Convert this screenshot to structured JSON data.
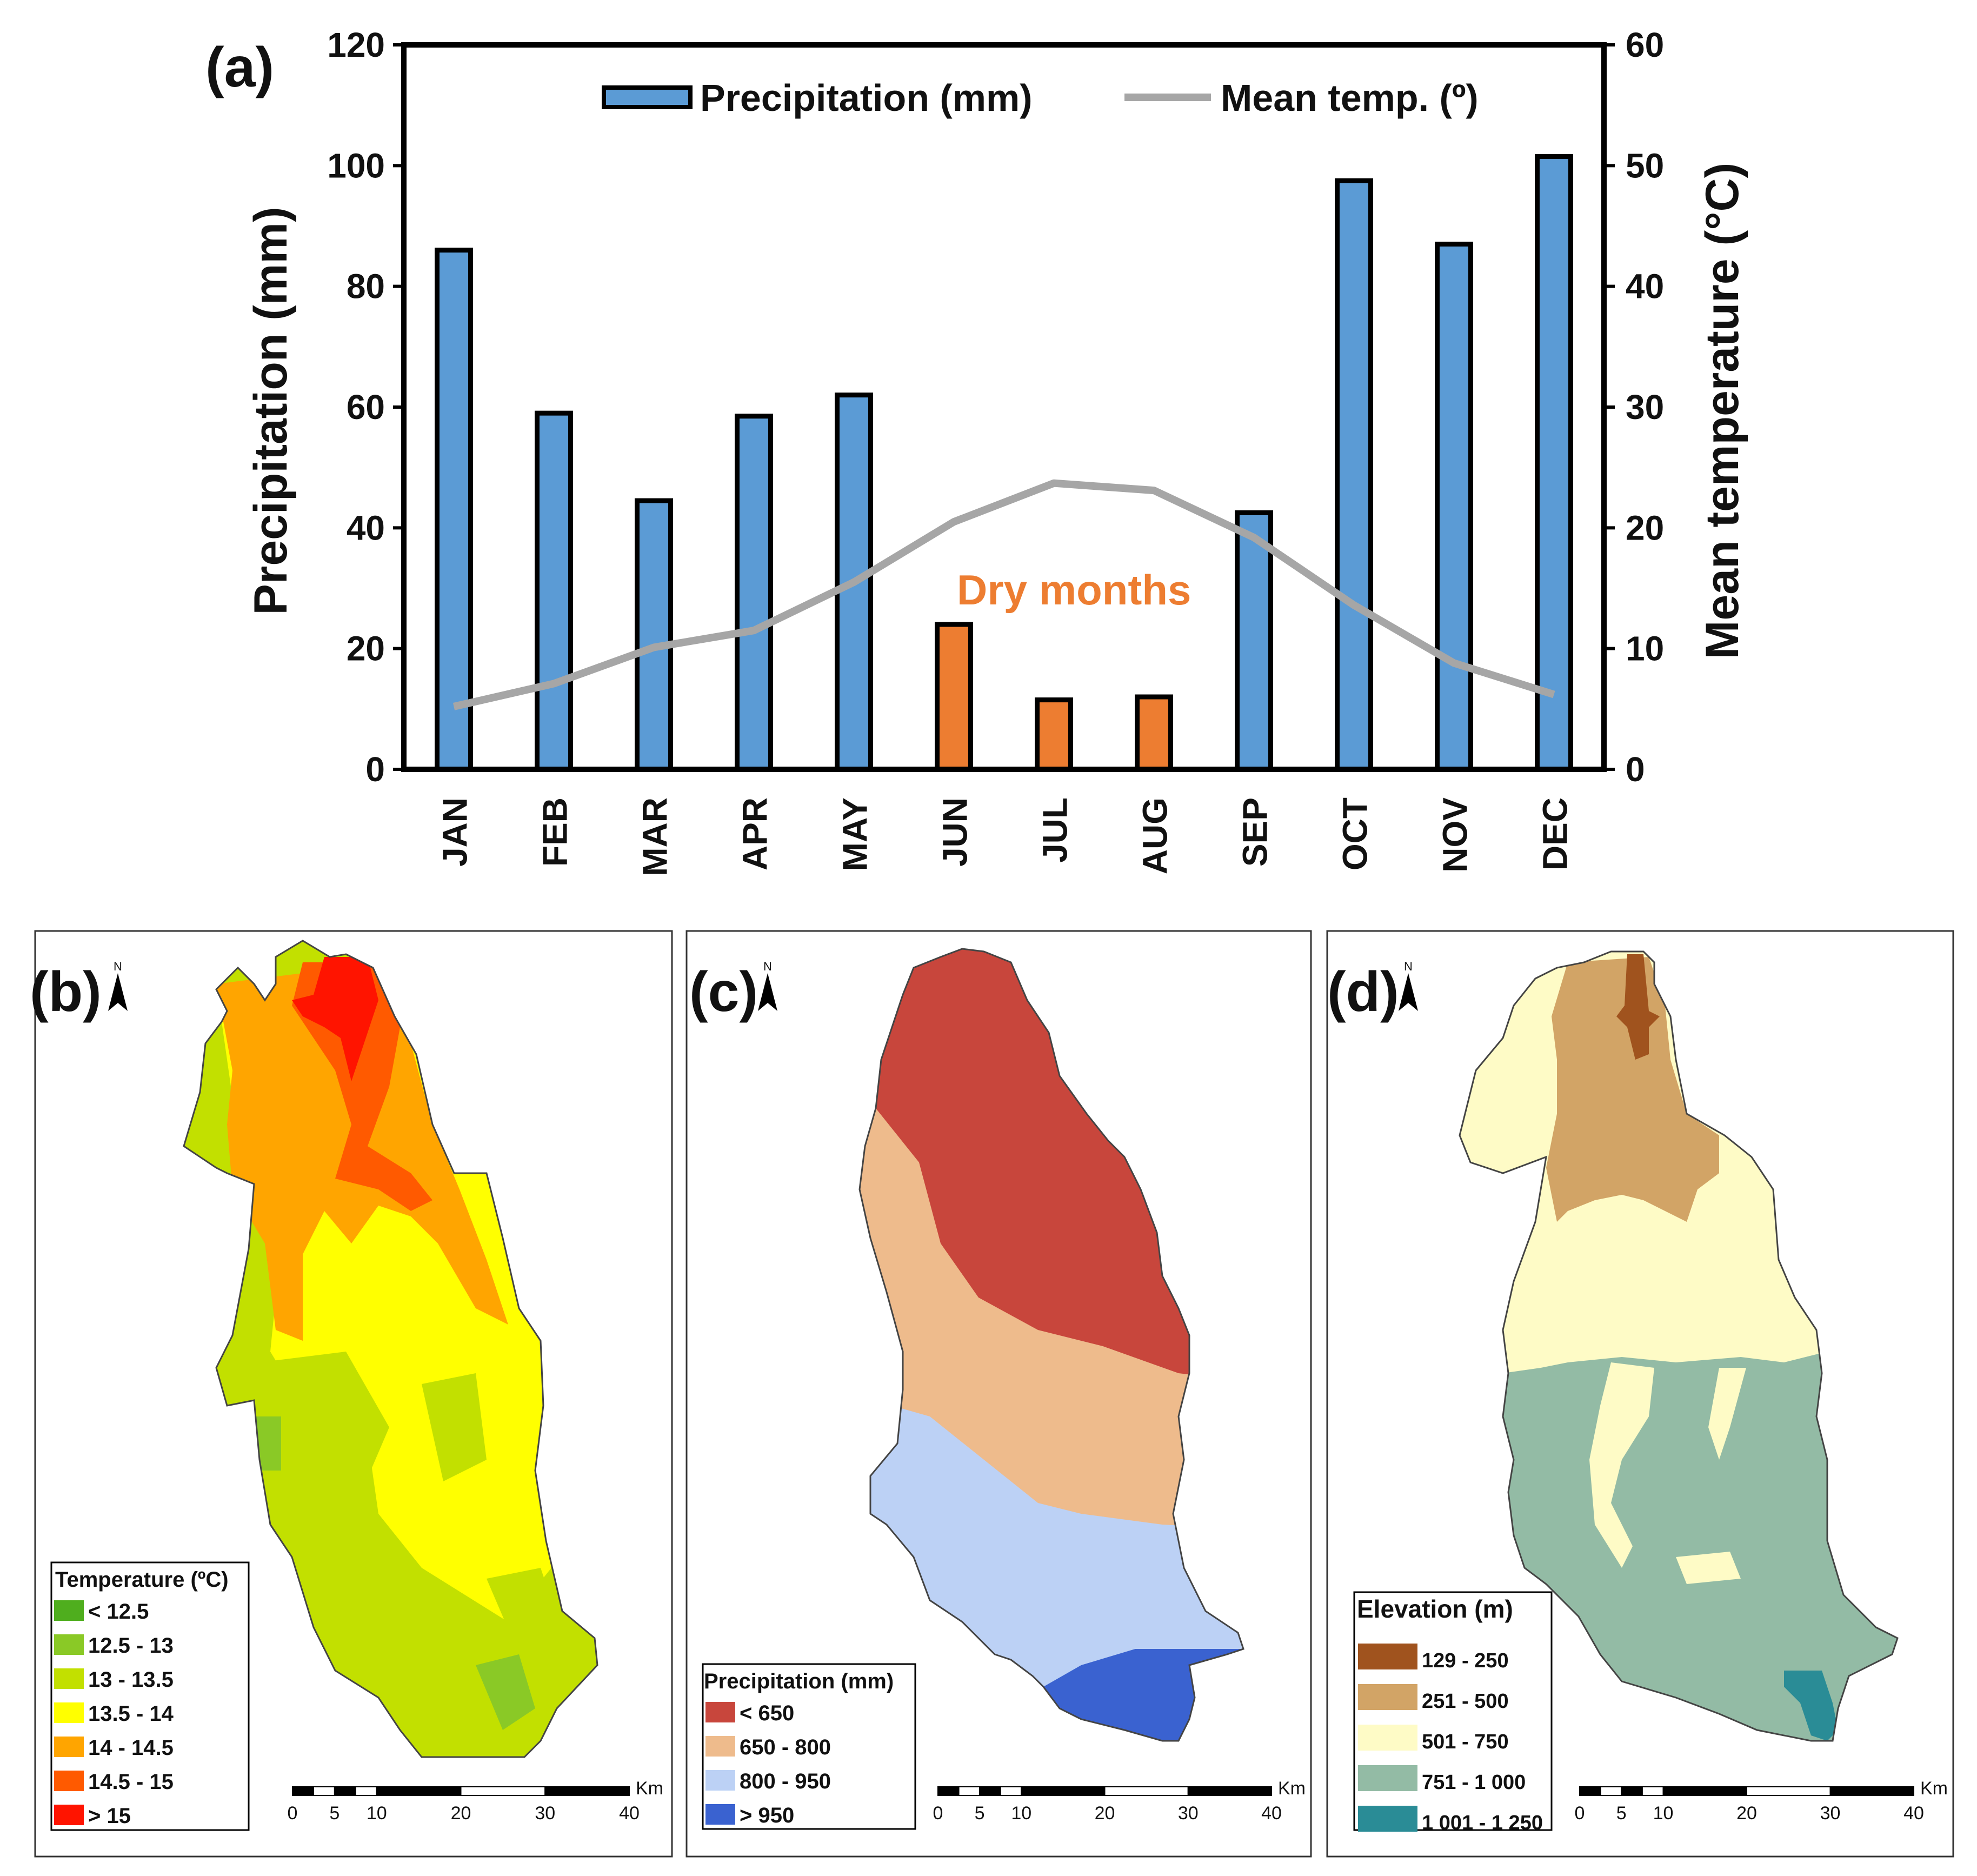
{
  "chart_data": [
    {
      "panel": "(a)",
      "type": "bar",
      "categories": [
        "JAN",
        "FEB",
        "MAR",
        "APR",
        "MAY",
        "JUN",
        "JUL",
        "AUG",
        "SEP",
        "OCT",
        "NOV",
        "DEC"
      ],
      "series": [
        {
          "name": "Precipitation (mm)",
          "axis": "left",
          "kind": "bar",
          "color": "#5b9bd5",
          "dry_color": "#ed7d31",
          "values": [
            86,
            59,
            44.5,
            58.5,
            62,
            24,
            11.5,
            12,
            42.5,
            97.5,
            87,
            101.5
          ],
          "dry": [
            false,
            false,
            false,
            false,
            false,
            true,
            true,
            true,
            false,
            false,
            false,
            false
          ]
        },
        {
          "name": "Mean temp. (º)",
          "axis": "right",
          "kind": "line",
          "color": "#a6a6a6",
          "values": [
            5.2,
            7.1,
            10.1,
            11.5,
            15.5,
            20.5,
            23.7,
            23.1,
            19.2,
            13.6,
            8.8,
            6.2
          ]
        }
      ],
      "y_left": {
        "label": "Precipitation (mm)",
        "min": 0,
        "max": 120,
        "ticks": [
          "0",
          "20",
          "40",
          "60",
          "80",
          "100",
          "120"
        ]
      },
      "y_right": {
        "label": "Mean temperature (°C)",
        "min": 0,
        "max": 60,
        "ticks": [
          "0",
          "10",
          "20",
          "30",
          "40",
          "50",
          "60"
        ]
      },
      "annotation": "Dry months"
    },
    {
      "panel": "(b)",
      "type": "map",
      "legend_title": "Temperature (ºC)",
      "classes": [
        {
          "label": "< 12.5",
          "color": "#4fae1e"
        },
        {
          "label": "12.5 - 13",
          "color": "#8ac926"
        },
        {
          "label": "13 - 13.5",
          "color": "#c2e000"
        },
        {
          "label": "13.5 - 14",
          "color": "#ffff00"
        },
        {
          "label": "14 - 14.5",
          "color": "#ffa500"
        },
        {
          "label": "14.5 - 15",
          "color": "#ff5a00"
        },
        {
          "label": "> 15",
          "color": "#ff1400"
        }
      ]
    },
    {
      "panel": "(c)",
      "type": "map",
      "legend_title": "Precipitation (mm)",
      "classes": [
        {
          "label": "< 650",
          "color": "#c8463c"
        },
        {
          "label": "650 - 800",
          "color": "#eebb8c"
        },
        {
          "label": "800 - 950",
          "color": "#bcd1f5"
        },
        {
          "label": "> 950",
          "color": "#3a62d0"
        }
      ]
    },
    {
      "panel": "(d)",
      "type": "map",
      "legend_title": "Elevation (m)",
      "classes": [
        {
          "label": "129 - 250",
          "color": "#a0531e"
        },
        {
          "label": "251 - 500",
          "color": "#d2a466"
        },
        {
          "label": "501 - 750",
          "color": "#fefbc6"
        },
        {
          "label": "751 - 1 000",
          "color": "#93bba5"
        },
        {
          "label": "1 001 - 1 250",
          "color": "#2a8c96"
        }
      ]
    }
  ],
  "scalebar": {
    "unit": "Km",
    "ticks": [
      "0",
      "5",
      "10",
      "20",
      "30",
      "40"
    ]
  },
  "north_label": "N"
}
